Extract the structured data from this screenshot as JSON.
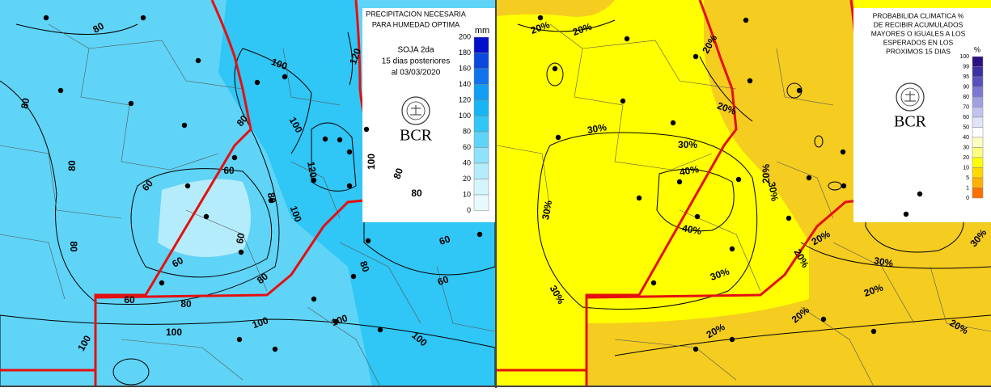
{
  "left_map": {
    "title_lines": [
      "PRECIPITACION NECESARIA",
      "PARA HUMEDAD OPTIMA"
    ],
    "crop_lines": [
      "SOJA 2da",
      "15 dias  posteriores",
      "al 03/03/2020"
    ],
    "logo_text": "BCR",
    "legend": {
      "unit": "mm",
      "levels": [
        {
          "value": 200,
          "color": "#0010c8"
        },
        {
          "value": 180,
          "color": "#0a48de"
        },
        {
          "value": 160,
          "color": "#0f74ec"
        },
        {
          "value": 140,
          "color": "#129ef2"
        },
        {
          "value": 120,
          "color": "#16b6f4"
        },
        {
          "value": 100,
          "color": "#30c6f5"
        },
        {
          "value": 80,
          "color": "#5fd4f7"
        },
        {
          "value": 60,
          "color": "#8ee2f9"
        },
        {
          "value": 40,
          "color": "#b4ecfb"
        },
        {
          "value": 20,
          "color": "#d4f5fd"
        },
        {
          "value": 10,
          "color": "#e8fafe"
        },
        {
          "value": 0,
          "color": "#ffffff"
        }
      ]
    },
    "contour_labels": [
      "80",
      "100",
      "120",
      "80",
      "80",
      "100",
      "80",
      "60",
      "60",
      "120",
      "100",
      "80",
      "80",
      "100",
      "80",
      "60",
      "60",
      "80",
      "60",
      "80",
      "80",
      "60",
      "80",
      "60",
      "100",
      "100",
      "100",
      "100",
      "100"
    ]
  },
  "right_map": {
    "title_lines": [
      "PROBABILIDA CLIMATICA %",
      "DE RECIBIR ACUMULADOS",
      "MAYORES O IGUALES A LOS",
      "ESPERADOS EN LOS",
      "PROXIMOS 15 DIAS"
    ],
    "logo_text": "BCR",
    "legend": {
      "unit": "%",
      "levels": [
        {
          "value": 100,
          "color": "#2a1080"
        },
        {
          "value": 99,
          "color": "#3a30a0"
        },
        {
          "value": 95,
          "color": "#5850bc"
        },
        {
          "value": 90,
          "color": "#7a78d0"
        },
        {
          "value": 80,
          "color": "#9fa0e0"
        },
        {
          "value": 70,
          "color": "#c2c2ee"
        },
        {
          "value": 60,
          "color": "#e2e2f8"
        },
        {
          "value": 50,
          "color": "#ffffff"
        },
        {
          "value": 40,
          "color": "#ffffc0"
        },
        {
          "value": 30,
          "color": "#ffff80"
        },
        {
          "value": 20,
          "color": "#ffff00"
        },
        {
          "value": 10,
          "color": "#ffd800"
        },
        {
          "value": 5,
          "color": "#ffb000"
        },
        {
          "value": 1,
          "color": "#ff7000"
        },
        {
          "value": 0,
          "color": "#ff0000"
        }
      ]
    },
    "contour_labels": [
      "20%",
      "20%",
      "20%",
      "20%",
      "30%",
      "30%",
      "40%",
      "30%",
      "20%",
      "30%",
      "40%",
      "30%",
      "30%",
      "20%",
      "20%",
      "30%",
      "20%",
      "20%",
      "20%",
      "20%",
      "30%"
    ]
  }
}
